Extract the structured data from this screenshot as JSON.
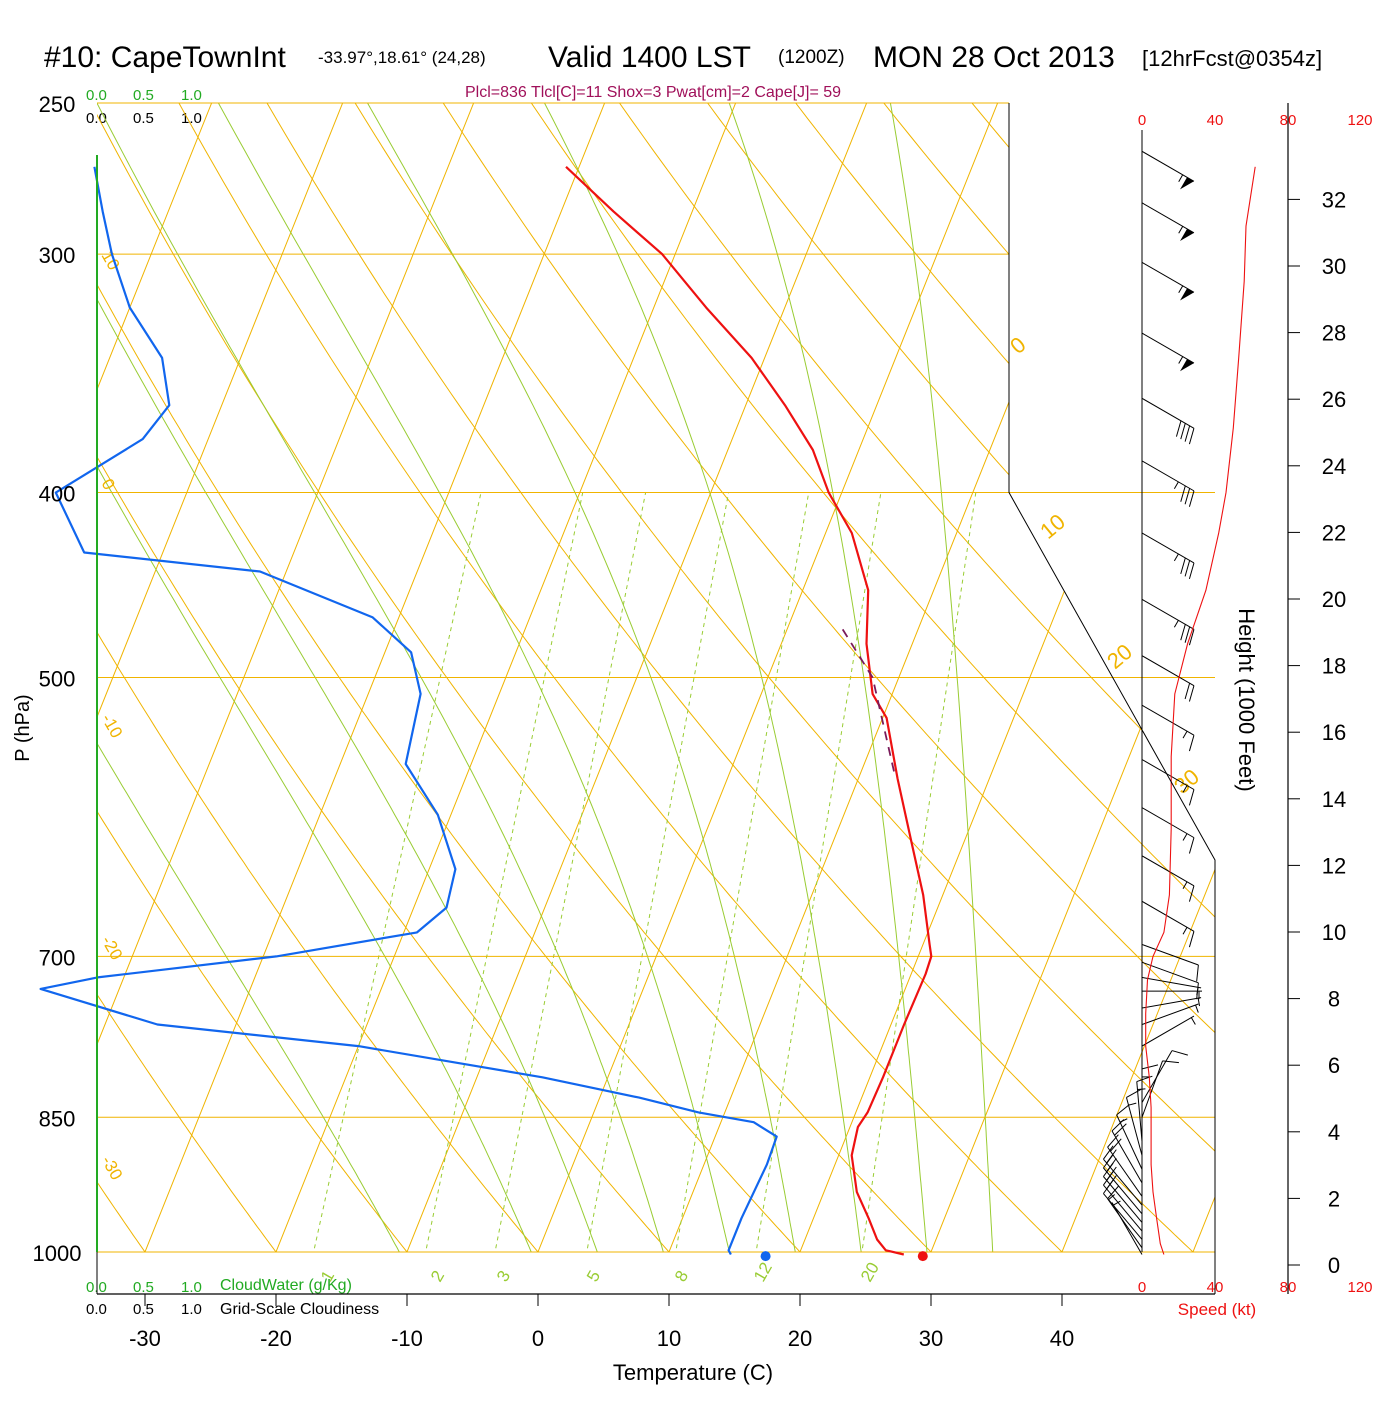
{
  "header": {
    "station": "#10: CapeTownInt",
    "location": "-33.97°,18.61° (24,28)",
    "valid_main": "Valid 1400 LST",
    "valid_zulu": "(1200Z)",
    "date": "MON 28 Oct 2013",
    "forecast": "[12hrFcst@0354z]",
    "indices": "Plcl=836 Tlcl[C]=11 Shox=3 Pwat[cm]=2 Cape[J]= 59"
  },
  "scales": {
    "cloudwater_top": [
      "0.0",
      "0.5",
      "1.0"
    ],
    "cloudiness_top": [
      "0.0",
      "0.5",
      "1.0"
    ],
    "cloudwater_bottom": [
      "0.0",
      "0.5",
      "1.0"
    ],
    "cloudiness_bottom": [
      "0.0",
      "0.5",
      "1.0"
    ],
    "cloudwater_label": "CloudWater (g/Kg)",
    "cloudiness_label": "Grid-Scale Cloudiness",
    "speed_ticks": [
      "0",
      "40",
      "80",
      "120"
    ],
    "speed_label": "Speed (kt)"
  },
  "colors": {
    "isobar": "#f0b400",
    "isotherm": "#f0b400",
    "dry_adiabat": "#f0b400",
    "moist_adiabat": "#99cc33",
    "mixing_ratio": "#99cc33",
    "temperature": "#ee1111",
    "dewpoint": "#1166ee",
    "parcel": "#7a1a5a",
    "index_text": "#a0105a",
    "speed_text": "#ee1111",
    "cloud_scale": "#22aa22"
  },
  "chart_data": {
    "type": "line",
    "subtype": "skew-T log-P sounding",
    "xlabel": "Temperature (C)",
    "ylabel": "P (hPa)",
    "right_axis_label": "Height (1000 Feet)",
    "x_ticks": [
      -30,
      -20,
      -10,
      0,
      10,
      20,
      30,
      40
    ],
    "y_ticks": [
      250,
      300,
      400,
      500,
      700,
      850,
      1000
    ],
    "height_ticks": [
      0,
      2,
      4,
      6,
      8,
      10,
      12,
      14,
      16,
      18,
      20,
      22,
      24,
      26,
      28,
      30,
      32
    ],
    "isotherm_labels": [
      "10",
      "0",
      "-10",
      "-20",
      "-30",
      "0",
      "10",
      "20",
      "30"
    ],
    "mixing_ratio_labels": [
      "1",
      "2",
      "3",
      "5",
      "8",
      "12",
      "20"
    ],
    "series": [
      {
        "name": "Temperature",
        "points": [
          [
            28.0,
            1003
          ],
          [
            26.5,
            998
          ],
          [
            25.5,
            985
          ],
          [
            24.2,
            960
          ],
          [
            22.5,
            930
          ],
          [
            21.0,
            890
          ],
          [
            20.6,
            860
          ],
          [
            20.9,
            845
          ],
          [
            21.0,
            810
          ],
          [
            21.0,
            760
          ],
          [
            21.1,
            715
          ],
          [
            21.0,
            700
          ],
          [
            20.5,
            690
          ],
          [
            18.5,
            650
          ],
          [
            16.0,
            610
          ],
          [
            13.0,
            565
          ],
          [
            10.3,
            525
          ],
          [
            8.5,
            510
          ],
          [
            6.5,
            480
          ],
          [
            5.0,
            450
          ],
          [
            2.0,
            420
          ],
          [
            -1.0,
            400
          ],
          [
            -3.5,
            380
          ],
          [
            -7.0,
            360
          ],
          [
            -11.0,
            340
          ],
          [
            -16.0,
            320
          ],
          [
            -21.0,
            300
          ],
          [
            -26.0,
            285
          ],
          [
            -31.0,
            270
          ]
        ]
      },
      {
        "name": "Dewpoint",
        "points": [
          [
            14.8,
            1003
          ],
          [
            14.5,
            998
          ],
          [
            14.5,
            960
          ],
          [
            14.8,
            900
          ],
          [
            14.7,
            870
          ],
          [
            12.5,
            855
          ],
          [
            8.0,
            845
          ],
          [
            3.0,
            830
          ],
          [
            -5.0,
            810
          ],
          [
            -20.0,
            780
          ],
          [
            -36.0,
            760
          ],
          [
            -46.0,
            728
          ],
          [
            -42.0,
            718
          ],
          [
            -29.0,
            700
          ],
          [
            -19.0,
            680
          ],
          [
            -17.5,
            660
          ],
          [
            -18.0,
            630
          ],
          [
            -21.0,
            590
          ],
          [
            -25.0,
            555
          ],
          [
            -26.0,
            510
          ],
          [
            -28.0,
            485
          ],
          [
            -32.0,
            465
          ],
          [
            -42.0,
            440
          ],
          [
            -56.0,
            430
          ],
          [
            -60.0,
            400
          ],
          [
            -55.0,
            375
          ],
          [
            -54.0,
            360
          ],
          [
            -56.0,
            340
          ],
          [
            -60.0,
            320
          ],
          [
            -63.0,
            300
          ],
          [
            -65.0,
            285
          ],
          [
            -67.0,
            270
          ]
        ]
      },
      {
        "name": "Parcel",
        "points": [
          [
            12.5,
            560
          ],
          [
            8.0,
            500
          ],
          [
            4.0,
            470
          ]
        ]
      }
    ],
    "surface_points": {
      "temperature": 29.5,
      "dewpoint": 17.5,
      "pressure": 1005
    },
    "wind_barbs": [
      {
        "p": 1003,
        "dir": 150,
        "kt": 5
      },
      {
        "p": 995,
        "dir": 145,
        "kt": 10
      },
      {
        "p": 985,
        "dir": 140,
        "kt": 15
      },
      {
        "p": 975,
        "dir": 140,
        "kt": 20
      },
      {
        "p": 965,
        "dir": 140,
        "kt": 20
      },
      {
        "p": 955,
        "dir": 140,
        "kt": 20
      },
      {
        "p": 945,
        "dir": 140,
        "kt": 20
      },
      {
        "p": 935,
        "dir": 145,
        "kt": 20
      },
      {
        "p": 920,
        "dir": 150,
        "kt": 20
      },
      {
        "p": 905,
        "dir": 155,
        "kt": 15
      },
      {
        "p": 890,
        "dir": 165,
        "kt": 15
      },
      {
        "p": 875,
        "dir": 175,
        "kt": 15
      },
      {
        "p": 862,
        "dir": 180,
        "kt": 15
      },
      {
        "p": 850,
        "dir": 200,
        "kt": 10
      },
      {
        "p": 835,
        "dir": 210,
        "kt": 10
      },
      {
        "p": 780,
        "dir": 240,
        "kt": 5
      },
      {
        "p": 760,
        "dir": 250,
        "kt": 5
      },
      {
        "p": 745,
        "dir": 260,
        "kt": 5
      },
      {
        "p": 730,
        "dir": 270,
        "kt": 5
      },
      {
        "p": 718,
        "dir": 280,
        "kt": 5
      },
      {
        "p": 705,
        "dir": 290,
        "kt": 10
      },
      {
        "p": 690,
        "dir": 290,
        "kt": 10
      },
      {
        "p": 655,
        "dir": 300,
        "kt": 15
      },
      {
        "p": 620,
        "dir": 300,
        "kt": 15
      },
      {
        "p": 585,
        "dir": 300,
        "kt": 15
      },
      {
        "p": 552,
        "dir": 300,
        "kt": 15
      },
      {
        "p": 517,
        "dir": 300,
        "kt": 15
      },
      {
        "p": 487,
        "dir": 300,
        "kt": 20
      },
      {
        "p": 455,
        "dir": 300,
        "kt": 35
      },
      {
        "p": 420,
        "dir": 300,
        "kt": 35
      },
      {
        "p": 385,
        "dir": 300,
        "kt": 35
      },
      {
        "p": 357,
        "dir": 300,
        "kt": 40
      },
      {
        "p": 330,
        "dir": 300,
        "kt": 55
      },
      {
        "p": 303,
        "dir": 300,
        "kt": 55
      },
      {
        "p": 282,
        "dir": 300,
        "kt": 55
      },
      {
        "p": 265,
        "dir": 300,
        "kt": 55
      }
    ],
    "wind_speed_profile": [
      [
        1003,
        12
      ],
      [
        990,
        10
      ],
      [
        960,
        8
      ],
      [
        930,
        6
      ],
      [
        900,
        5
      ],
      [
        870,
        5
      ],
      [
        840,
        5
      ],
      [
        810,
        4
      ],
      [
        780,
        2
      ],
      [
        750,
        2
      ],
      [
        720,
        3
      ],
      [
        700,
        6
      ],
      [
        680,
        12
      ],
      [
        650,
        15
      ],
      [
        600,
        16
      ],
      [
        550,
        16
      ],
      [
        510,
        18
      ],
      [
        480,
        25
      ],
      [
        450,
        35
      ],
      [
        420,
        42
      ],
      [
        400,
        46
      ],
      [
        370,
        50
      ],
      [
        340,
        53
      ],
      [
        310,
        56
      ],
      [
        290,
        57
      ],
      [
        270,
        62
      ]
    ]
  }
}
